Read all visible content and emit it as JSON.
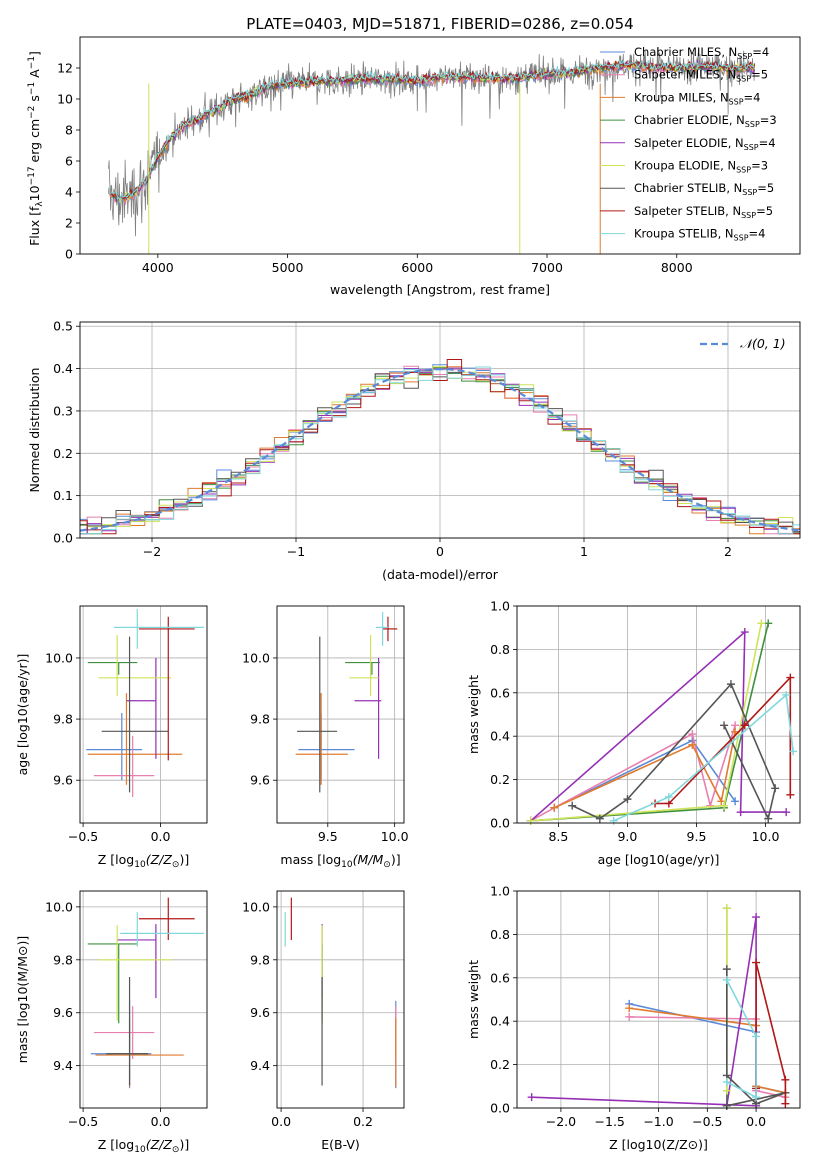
{
  "title": "PLATE=0403, MJD=51871, FIBERID=0286, z=0.054",
  "colors": {
    "Chabrier MILES": "#5b8bd8",
    "Salpeter MILES": "#e87fb0",
    "Kroupa MILES": "#e07b2f",
    "Chabrier ELODIE": "#3f8f3f",
    "Salpeter ELODIE": "#9530b5",
    "Kroupa ELODIE": "#cfe35a",
    "Chabrier STELIB": "#555555",
    "Salpeter STELIB": "#b01818",
    "Kroupa STELIB": "#80d8dc",
    "data": "#808080",
    "normal": "#5b8bd8"
  },
  "chart_data": [
    {
      "id": "spectrum",
      "type": "line",
      "xlabel": "wavelength [Angstrom, rest frame]",
      "ylabel_main": "Flux [f",
      "ylabel_sub": "λ",
      "ylabel_rest": "10",
      "ylabel_exp1": "−17",
      "ylabel_units": " erg cm",
      "ylabel_exp2": "−2",
      "ylabel_s": " s",
      "ylabel_exp3": "−1",
      "ylabel_A": " A",
      "ylabel_exp4": "−1",
      "ylabel_end": "]",
      "xlim": [
        3400,
        8950
      ],
      "ylim": [
        0,
        14
      ],
      "xticks": [
        4000,
        5000,
        6000,
        7000,
        8000
      ],
      "yticks": [
        0,
        2,
        4,
        6,
        8,
        10,
        12
      ],
      "legend_position": "right",
      "continuum": {
        "x": [
          3620,
          3700,
          3800,
          3900,
          4000,
          4100,
          4200,
          4300,
          4400,
          4500,
          4600,
          4700,
          4800,
          4900,
          5000,
          5200,
          5400,
          5600,
          5800,
          6000,
          6200,
          6400,
          6600,
          6800,
          7000,
          7200,
          7400,
          7600,
          7800,
          8000,
          8200,
          8400,
          8600
        ],
        "y": [
          4.0,
          3.5,
          3.8,
          4.6,
          6.2,
          7.5,
          8.3,
          8.7,
          9.1,
          9.6,
          10.0,
          10.2,
          10.6,
          10.9,
          11.0,
          11.1,
          11.2,
          11.3,
          11.3,
          11.2,
          11.4,
          11.4,
          11.3,
          11.4,
          11.6,
          11.7,
          12.0,
          12.2,
          12.1,
          12.0,
          12.1,
          12.0,
          12.0
        ]
      },
      "series": [
        {
          "name": "Chabrier MILES",
          "legend": "Chabrier MILES, N",
          "nssp": "=4"
        },
        {
          "name": "Salpeter MILES",
          "legend": "Salpeter MILES, N",
          "nssp": "=5"
        },
        {
          "name": "Kroupa MILES",
          "legend": "Kroupa MILES, N",
          "nssp": "=4"
        },
        {
          "name": "Chabrier ELODIE",
          "legend": "Chabrier ELODIE, N",
          "nssp": "=3"
        },
        {
          "name": "Salpeter ELODIE",
          "legend": "Salpeter ELODIE, N",
          "nssp": "=4"
        },
        {
          "name": "Kroupa ELODIE",
          "legend": "Kroupa ELODIE, N",
          "nssp": "=3"
        },
        {
          "name": "Chabrier STELIB",
          "legend": "Chabrier STELIB, N",
          "nssp": "=5"
        },
        {
          "name": "Salpeter STELIB",
          "legend": "Salpeter STELIB, N",
          "nssp": "=5"
        },
        {
          "name": "Kroupa STELIB",
          "legend": "Kroupa STELIB, N",
          "nssp": "=4"
        }
      ],
      "legend_sub": "SSP"
    },
    {
      "id": "residuals",
      "type": "histogram",
      "xlabel": "(data-model)/error",
      "ylabel": "Normed distribution",
      "xlim": [
        -2.5,
        2.5
      ],
      "ylim": [
        0,
        0.51
      ],
      "xticks": [
        -2,
        -1,
        0,
        1,
        2
      ],
      "yticks": [
        0.0,
        0.1,
        0.2,
        0.3,
        0.4,
        0.5
      ],
      "grid": true,
      "legend": "𝒩(0, 1)",
      "legend_position": "top-right",
      "bin_width": 0.1
    },
    {
      "id": "age_vs_Z",
      "type": "errorbar",
      "xlabel": "Z [log",
      "xlabel_sub": "10",
      "xlabel_rest": "(Z/Z",
      "xlabel_odot": "⊙",
      "xlabel_end": ")]",
      "ylabel": "age  [log10(age/yr)]",
      "xlim": [
        -0.52,
        0.3
      ],
      "ylim": [
        9.46,
        10.17
      ],
      "xticks": [
        -0.5,
        0.0
      ],
      "yticks": [
        9.6,
        9.8,
        10.0
      ],
      "points": [
        {
          "series": "Chabrier MILES",
          "x": -0.25,
          "xerr": [
            0.23,
            0.13
          ],
          "y": 9.7,
          "yerr": [
            0.1,
            0.12
          ]
        },
        {
          "series": "Salpeter MILES",
          "x": -0.18,
          "xerr": [
            0.25,
            0.14
          ],
          "y": 9.615,
          "yerr": [
            0.07,
            0.13
          ]
        },
        {
          "series": "Kroupa MILES",
          "x": -0.22,
          "xerr": [
            0.25,
            0.36
          ],
          "y": 9.685,
          "yerr": [
            0.1,
            0.2
          ]
        },
        {
          "series": "Chabrier ELODIE",
          "x": -0.27,
          "xerr": [
            0.2,
            0.12
          ],
          "y": 9.985,
          "yerr": [
            0.04,
            0.0
          ]
        },
        {
          "series": "Salpeter ELODIE",
          "x": -0.03,
          "xerr": [
            0.19,
            0.0
          ],
          "y": 9.86,
          "yerr": [
            0.19,
            0.14
          ]
        },
        {
          "series": "Kroupa ELODIE",
          "x": -0.28,
          "xerr": [
            0.12,
            0.35
          ],
          "y": 9.935,
          "yerr": [
            0.06,
            0.14
          ]
        },
        {
          "series": "Chabrier STELIB",
          "x": -0.2,
          "xerr": [
            0.18,
            0.25
          ],
          "y": 9.76,
          "yerr": [
            0.2,
            0.31
          ]
        },
        {
          "series": "Salpeter STELIB",
          "x": 0.05,
          "xerr": [
            0.19,
            0.17
          ],
          "y": 10.095,
          "yerr": [
            0.43,
            0.04
          ]
        },
        {
          "series": "Kroupa STELIB",
          "x": -0.15,
          "xerr": [
            0.15,
            0.43
          ],
          "y": 10.1,
          "yerr": [
            0.07,
            0.06
          ]
        }
      ]
    },
    {
      "id": "age_vs_mass",
      "type": "errorbar",
      "xlabel": "mass [log",
      "xlabel_sub": "10",
      "xlabel_rest": "(M/M",
      "xlabel_odot": "⊙",
      "xlabel_end": ")]",
      "xlim": [
        9.12,
        10.07
      ],
      "ylim": [
        9.46,
        10.17
      ],
      "xticks": [
        9.5,
        10.0
      ],
      "yticks": [
        9.6,
        9.8,
        10.0
      ],
      "points": [
        {
          "series": "Chabrier MILES",
          "x": 9.45,
          "xerr": [
            0.17,
            0.25
          ],
          "y": 9.7,
          "yerr": [
            0.1,
            0.12
          ]
        },
        {
          "series": "Kroupa MILES",
          "x": 9.45,
          "xerr": [
            0.19,
            0.2
          ],
          "y": 9.685,
          "yerr": [
            0.1,
            0.2
          ]
        },
        {
          "series": "Chabrier ELODIE",
          "x": 9.83,
          "xerr": [
            0.2,
            0.06
          ],
          "y": 9.985,
          "yerr": [
            0.04,
            0.0
          ]
        },
        {
          "series": "Salpeter ELODIE",
          "x": 9.88,
          "xerr": [
            0.18,
            0.02
          ],
          "y": 9.86,
          "yerr": [
            0.19,
            0.14
          ]
        },
        {
          "series": "Kroupa ELODIE",
          "x": 9.82,
          "xerr": [
            0.16,
            0.06
          ],
          "y": 9.935,
          "yerr": [
            0.06,
            0.14
          ]
        },
        {
          "series": "Chabrier STELIB",
          "x": 9.44,
          "xerr": [
            0.17,
            0.13
          ],
          "y": 9.76,
          "yerr": [
            0.2,
            0.31
          ]
        },
        {
          "series": "Salpeter STELIB",
          "x": 9.95,
          "xerr": [
            0.04,
            0.07
          ],
          "y": 10.095,
          "yerr": [
            0.04,
            0.04
          ]
        },
        {
          "series": "Kroupa STELIB",
          "x": 9.91,
          "xerr": [
            0.05,
            0.04
          ],
          "y": 10.1,
          "yerr": [
            0.06,
            0.05
          ]
        }
      ]
    },
    {
      "id": "weight_vs_age",
      "type": "line",
      "xlabel": "age  [log10(age/yr)]",
      "ylabel": "mass weight",
      "xlim": [
        8.2,
        10.25
      ],
      "ylim": [
        0,
        1
      ],
      "xticks": [
        8.5,
        9.0,
        9.5,
        10.0
      ],
      "yticks": [
        0.0,
        0.2,
        0.4,
        0.6,
        0.8,
        1.0
      ],
      "grid": true,
      "series": [
        {
          "name": "Chabrier MILES",
          "x": [
            8.47,
            9.47,
            9.78
          ],
          "y": [
            0.07,
            0.38,
            0.1
          ]
        },
        {
          "name": "Salpeter MILES",
          "x": [
            8.3,
            8.47,
            9.47,
            9.6,
            9.78
          ],
          "y": [
            0.01,
            0.07,
            0.41,
            0.08,
            0.45
          ]
        },
        {
          "name": "Kroupa MILES",
          "x": [
            8.47,
            9.47,
            9.68,
            9.78
          ],
          "y": [
            0.07,
            0.36,
            0.1,
            0.42
          ]
        },
        {
          "name": "Chabrier ELODIE",
          "x": [
            8.3,
            9.7,
            10.02
          ],
          "y": [
            0.01,
            0.07,
            0.92
          ]
        },
        {
          "name": "Salpeter ELODIE",
          "x": [
            8.3,
            9.85,
            9.82,
            10.15
          ],
          "y": [
            0.01,
            0.88,
            0.05,
            0.05
          ]
        },
        {
          "name": "Kroupa ELODIE",
          "x": [
            8.3,
            9.7,
            9.97
          ],
          "y": [
            0.01,
            0.08,
            0.92
          ]
        },
        {
          "name": "Chabrier STELIB",
          "x": [
            8.6,
            8.8,
            9.0,
            9.75,
            10.07,
            10.02,
            9.7
          ],
          "y": [
            0.08,
            0.02,
            0.11,
            0.64,
            0.16,
            0.02,
            0.45
          ]
        },
        {
          "name": "Salpeter STELIB",
          "x": [
            9.2,
            9.3,
            9.85,
            10.18,
            10.18
          ],
          "y": [
            0.09,
            0.09,
            0.45,
            0.67,
            0.13
          ]
        },
        {
          "name": "Kroupa STELIB",
          "x": [
            8.9,
            9.3,
            10.15,
            10.2
          ],
          "y": [
            0.01,
            0.12,
            0.59,
            0.33
          ]
        }
      ]
    },
    {
      "id": "mass_vs_Z",
      "type": "errorbar",
      "xlabel": "Z [log",
      "xlabel_sub": "10",
      "xlabel_rest": "(Z/Z",
      "xlabel_odot": "⊙",
      "xlabel_end": ")]",
      "ylabel": "mass [log10(M/M⊙)]",
      "xlim": [
        -0.52,
        0.3
      ],
      "ylim": [
        9.24,
        10.06
      ],
      "xticks": [
        -0.5,
        0.0
      ],
      "yticks": [
        9.4,
        9.6,
        9.8,
        10.0
      ],
      "points": [
        {
          "series": "Chabrier MILES",
          "x": -0.2,
          "xerr": [
            0.25,
            0.14
          ],
          "y": 9.445,
          "yerr": [
            0.13,
            0.2
          ]
        },
        {
          "series": "Salpeter MILES",
          "x": -0.18,
          "xerr": [
            0.25,
            0.14
          ],
          "y": 9.525,
          "yerr": [
            0.1,
            0.1
          ]
        },
        {
          "series": "Kroupa MILES",
          "x": -0.2,
          "xerr": [
            0.22,
            0.35
          ],
          "y": 9.44,
          "yerr": [
            0.12,
            0.14
          ]
        },
        {
          "series": "Chabrier ELODIE",
          "x": -0.27,
          "xerr": [
            0.2,
            0.12
          ],
          "y": 9.86,
          "yerr": [
            0.3,
            0.0
          ]
        },
        {
          "series": "Salpeter ELODIE",
          "x": -0.03,
          "xerr": [
            0.25,
            0.0
          ],
          "y": 9.875,
          "yerr": [
            0.22,
            0.06
          ]
        },
        {
          "series": "Kroupa ELODIE",
          "x": -0.28,
          "xerr": [
            0.12,
            0.35
          ],
          "y": 9.8,
          "yerr": [
            0.23,
            0.13
          ]
        },
        {
          "series": "Chabrier STELIB",
          "x": -0.2,
          "xerr": [
            0.15,
            0.12
          ],
          "y": 9.445,
          "yerr": [
            0.12,
            0.29
          ]
        },
        {
          "series": "Salpeter STELIB",
          "x": 0.05,
          "xerr": [
            0.19,
            0.17
          ],
          "y": 9.955,
          "yerr": [
            0.08,
            0.08
          ]
        },
        {
          "series": "Kroupa STELIB",
          "x": -0.15,
          "xerr": [
            0.11,
            0.43
          ],
          "y": 9.9,
          "yerr": [
            0.05,
            0.08
          ]
        }
      ]
    },
    {
      "id": "mass_vs_EBV",
      "type": "errorbar",
      "xlabel": "E(B-V)",
      "xlim": [
        -0.01,
        0.3
      ],
      "ylim": [
        9.24,
        10.06
      ],
      "xticks": [
        0.0,
        0.2
      ],
      "yticks": [
        9.4,
        9.6,
        9.8,
        10.0
      ],
      "points": [
        {
          "series": "Chabrier MILES",
          "x": 0.28,
          "y": 9.445,
          "yerr": [
            0.13,
            0.2
          ]
        },
        {
          "series": "Salpeter MILES",
          "x": 0.28,
          "y": 9.525,
          "yerr": [
            0.1,
            0.1
          ]
        },
        {
          "series": "Kroupa MILES",
          "x": 0.28,
          "y": 9.44,
          "yerr": [
            0.12,
            0.14
          ]
        },
        {
          "series": "Chabrier ELODIE",
          "x": 0.1,
          "y": 9.86,
          "yerr": [
            0.3,
            0.0
          ]
        },
        {
          "series": "Salpeter ELODIE",
          "x": 0.1,
          "y": 9.875,
          "yerr": [
            0.22,
            0.06
          ]
        },
        {
          "series": "Kroupa ELODIE",
          "x": 0.1,
          "y": 9.8,
          "yerr": [
            0.23,
            0.13
          ]
        },
        {
          "series": "Chabrier STELIB",
          "x": 0.1,
          "y": 9.445,
          "yerr": [
            0.12,
            0.29
          ]
        },
        {
          "series": "Salpeter STELIB",
          "x": 0.025,
          "y": 9.955,
          "yerr": [
            0.08,
            0.08
          ]
        },
        {
          "series": "Kroupa STELIB",
          "x": 0.01,
          "y": 9.9,
          "yerr": [
            0.05,
            0.08
          ]
        }
      ]
    },
    {
      "id": "weight_vs_Z",
      "type": "line",
      "xlabel": "Z [log10(Z/Z⊙)]",
      "ylabel": "mass weight",
      "xlim": [
        -2.45,
        0.45
      ],
      "ylim": [
        0,
        1
      ],
      "xticks": [
        -2.0,
        -1.5,
        -1.0,
        -0.5,
        0.0
      ],
      "yticks": [
        0.0,
        0.2,
        0.4,
        0.6,
        0.8,
        1.0
      ],
      "grid": true,
      "series": [
        {
          "name": "Chabrier MILES",
          "x": [
            -1.3,
            0.0,
            0.0,
            0.3
          ],
          "y": [
            0.48,
            0.35,
            0.1,
            0.07
          ]
        },
        {
          "name": "Salpeter MILES",
          "x": [
            -1.3,
            0.0,
            0.0,
            0.3
          ],
          "y": [
            0.42,
            0.41,
            0.08,
            0.05
          ]
        },
        {
          "name": "Kroupa MILES",
          "x": [
            -1.3,
            0.0,
            0.0,
            0.3
          ],
          "y": [
            0.46,
            0.38,
            0.1,
            0.07
          ]
        },
        {
          "name": "Chabrier ELODIE",
          "x": [
            -0.3,
            -0.3
          ],
          "y": [
            0.92,
            0.01
          ]
        },
        {
          "name": "Salpeter ELODIE",
          "x": [
            -2.3,
            0.0,
            0.0,
            -0.3
          ],
          "y": [
            0.05,
            0.01,
            0.88,
            0.01
          ]
        },
        {
          "name": "Kroupa ELODIE",
          "x": [
            -0.3,
            -0.3
          ],
          "y": [
            0.92,
            0.08
          ]
        },
        {
          "name": "Chabrier STELIB",
          "x": [
            -0.3,
            -0.3,
            0.0,
            0.3,
            -0.3
          ],
          "y": [
            0.64,
            0.15,
            0.02,
            0.07,
            0.01
          ]
        },
        {
          "name": "Salpeter STELIB",
          "x": [
            0.0,
            0.0,
            0.3,
            0.3
          ],
          "y": [
            0.09,
            0.67,
            0.13,
            0.02
          ]
        },
        {
          "name": "Kroupa STELIB",
          "x": [
            -0.3,
            0.0,
            0.0,
            -0.3
          ],
          "y": [
            0.59,
            0.33,
            0.05,
            0.12
          ]
        }
      ]
    }
  ]
}
